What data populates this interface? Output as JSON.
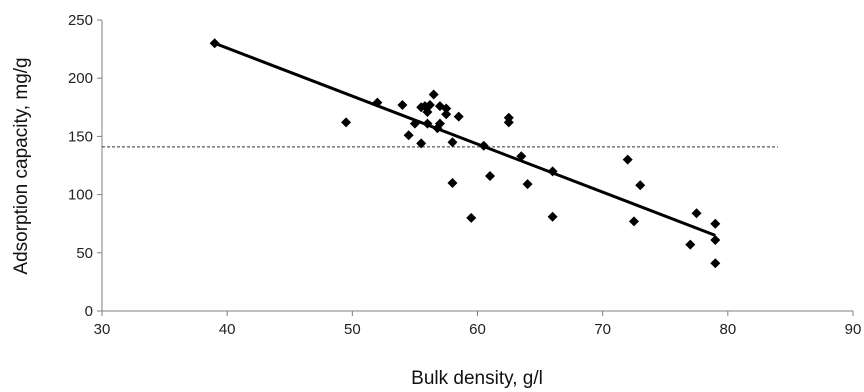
{
  "chart_data": {
    "type": "scatter",
    "title": "",
    "xlabel": "Bulk density, g/l",
    "ylabel": "Adsorption capacity, mg/g",
    "xlim": [
      30,
      90
    ],
    "ylim": [
      0,
      250
    ],
    "x_ticks": [
      30,
      40,
      50,
      60,
      70,
      80,
      90
    ],
    "y_ticks": [
      0,
      50,
      100,
      150,
      200,
      250
    ],
    "grid": false,
    "legend": "none",
    "marker": "diamond",
    "marker_color": "#000000",
    "points": [
      {
        "x": 39.0,
        "y": 230
      },
      {
        "x": 49.5,
        "y": 162
      },
      {
        "x": 52.0,
        "y": 179
      },
      {
        "x": 54.0,
        "y": 177
      },
      {
        "x": 54.5,
        "y": 151
      },
      {
        "x": 55.0,
        "y": 161
      },
      {
        "x": 55.5,
        "y": 175
      },
      {
        "x": 55.5,
        "y": 144
      },
      {
        "x": 55.8,
        "y": 176
      },
      {
        "x": 56.0,
        "y": 171
      },
      {
        "x": 56.0,
        "y": 161
      },
      {
        "x": 56.2,
        "y": 177
      },
      {
        "x": 56.5,
        "y": 186
      },
      {
        "x": 56.8,
        "y": 157
      },
      {
        "x": 57.0,
        "y": 176
      },
      {
        "x": 57.0,
        "y": 161
      },
      {
        "x": 57.5,
        "y": 174
      },
      {
        "x": 57.5,
        "y": 169
      },
      {
        "x": 58.0,
        "y": 145
      },
      {
        "x": 58.0,
        "y": 110
      },
      {
        "x": 58.5,
        "y": 167
      },
      {
        "x": 59.5,
        "y": 80
      },
      {
        "x": 60.5,
        "y": 142
      },
      {
        "x": 61.0,
        "y": 116
      },
      {
        "x": 62.5,
        "y": 166
      },
      {
        "x": 62.5,
        "y": 162
      },
      {
        "x": 63.5,
        "y": 133
      },
      {
        "x": 64.0,
        "y": 109
      },
      {
        "x": 66.0,
        "y": 120
      },
      {
        "x": 66.0,
        "y": 81
      },
      {
        "x": 72.0,
        "y": 130
      },
      {
        "x": 72.5,
        "y": 77
      },
      {
        "x": 73.0,
        "y": 108
      },
      {
        "x": 77.0,
        "y": 57
      },
      {
        "x": 77.5,
        "y": 84
      },
      {
        "x": 79.0,
        "y": 75
      },
      {
        "x": 79.0,
        "y": 61
      },
      {
        "x": 79.0,
        "y": 41
      }
    ],
    "trendline": {
      "x": [
        39,
        79
      ],
      "y": [
        230,
        65
      ]
    },
    "reference_line": {
      "y": 141,
      "x_start": 30,
      "x_end": 84,
      "style": "dashed"
    }
  }
}
